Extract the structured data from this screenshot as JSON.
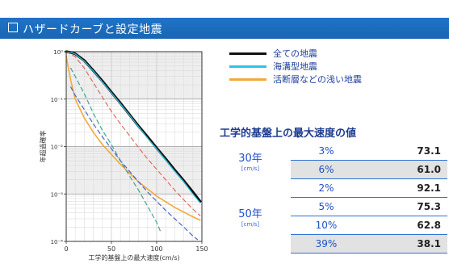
{
  "header": {
    "title": "ハザードカーブと設定地震",
    "bg_color": "#1d6ec3"
  },
  "chart_data": {
    "type": "line",
    "title": "",
    "xlabel": "工学的基盤上の最大速度(cm/s)",
    "ylabel": "年超過確率",
    "xlim": [
      0,
      150
    ],
    "ylim": [
      0.0001,
      1
    ],
    "y_scale": "log",
    "grid": true,
    "x_ticks": [
      0,
      50,
      100,
      150
    ],
    "x_tick_labels": [
      "0",
      "50",
      "100",
      "150"
    ],
    "y_ticks": [
      1,
      0.1,
      0.01,
      0.001,
      0.0001
    ],
    "y_tick_labels": [
      "10⁰",
      "10⁻¹",
      "10⁻²",
      "10⁻³",
      "10⁻⁴"
    ],
    "legend": [
      {
        "label": "全ての地震",
        "color": "#111111"
      },
      {
        "label": "海溝型地震",
        "color": "#2ec3e8"
      },
      {
        "label": "活断層などの浅い地震",
        "color": "#f2a93b"
      }
    ],
    "series": [
      {
        "name": "全ての地震",
        "color": "#111111",
        "width": 3.2,
        "dash": "",
        "x": [
          0,
          5,
          10,
          20,
          30,
          40,
          50,
          60,
          70,
          80,
          90,
          100,
          110,
          120,
          130,
          140,
          148
        ],
        "y": [
          1,
          0.97,
          0.9,
          0.65,
          0.4,
          0.24,
          0.14,
          0.082,
          0.047,
          0.027,
          0.016,
          0.0093,
          0.0055,
          0.0032,
          0.0019,
          0.0011,
          0.0007
        ]
      },
      {
        "name": "海溝型地震",
        "color": "#2ec3e8",
        "width": 1.2,
        "dash": "",
        "x": [
          0,
          5,
          10,
          20,
          30,
          40,
          50,
          60,
          70,
          80,
          90,
          100,
          110,
          120,
          130,
          140,
          148
        ],
        "y": [
          1,
          0.97,
          0.89,
          0.63,
          0.39,
          0.23,
          0.135,
          0.079,
          0.046,
          0.026,
          0.015,
          0.0089,
          0.0052,
          0.003,
          0.0018,
          0.001,
          0.00065
        ]
      },
      {
        "name": "活断層などの浅い地震",
        "color": "#f2a93b",
        "width": 1.6,
        "dash": "",
        "x": [
          0,
          2,
          5,
          10,
          20,
          30,
          40,
          50,
          60,
          80,
          100,
          120,
          140,
          148
        ],
        "y": [
          0.8,
          0.5,
          0.25,
          0.1,
          0.04,
          0.02,
          0.011,
          0.0068,
          0.0042,
          0.0018,
          0.0009,
          0.00052,
          0.00033,
          0.00028
        ]
      },
      {
        "name": "",
        "color": "#e06b5e",
        "width": 1.2,
        "dash": "5,4",
        "x": [
          0,
          10,
          20,
          30,
          40,
          50,
          60,
          70,
          80,
          90,
          100,
          110,
          120,
          130,
          140,
          148
        ],
        "y": [
          1,
          0.78,
          0.45,
          0.22,
          0.11,
          0.055,
          0.03,
          0.017,
          0.0095,
          0.0055,
          0.0033,
          0.002,
          0.0012,
          0.00075,
          0.00048,
          0.00035
        ]
      },
      {
        "name": "",
        "color": "#3fa58f",
        "width": 1.2,
        "dash": "5,4",
        "x": [
          5,
          10,
          20,
          30,
          40,
          50,
          60,
          70,
          80,
          90,
          100,
          105
        ],
        "y": [
          0.45,
          0.3,
          0.13,
          0.05,
          0.022,
          0.011,
          0.005,
          0.0024,
          0.0012,
          0.00055,
          0.00025,
          0.00015
        ]
      },
      {
        "name": "",
        "color": "#4a63c9",
        "width": 1.2,
        "dash": "5,4",
        "x": [
          5,
          10,
          20,
          30,
          40,
          50,
          60,
          70,
          80,
          90,
          100,
          110,
          120,
          130,
          140,
          145
        ],
        "y": [
          0.18,
          0.12,
          0.06,
          0.03,
          0.016,
          0.009,
          0.005,
          0.003,
          0.0018,
          0.0011,
          0.0007,
          0.00045,
          0.0003,
          0.0002,
          0.00013,
          0.00011
        ]
      }
    ]
  },
  "table": {
    "title": "工学的基盤上の最大速度の値",
    "groups": [
      {
        "period": "30年",
        "unit": "[cm/s]",
        "rows": [
          {
            "prob": "3%",
            "value": "73.1"
          },
          {
            "prob": "6%",
            "value": "61.0"
          }
        ]
      },
      {
        "period": "50年",
        "unit": "[cm/s]",
        "rows": [
          {
            "prob": "2%",
            "value": "92.1"
          },
          {
            "prob": "5%",
            "value": "75.3"
          },
          {
            "prob": "10%",
            "value": "62.8"
          },
          {
            "prob": "39%",
            "value": "38.1"
          }
        ]
      }
    ]
  }
}
